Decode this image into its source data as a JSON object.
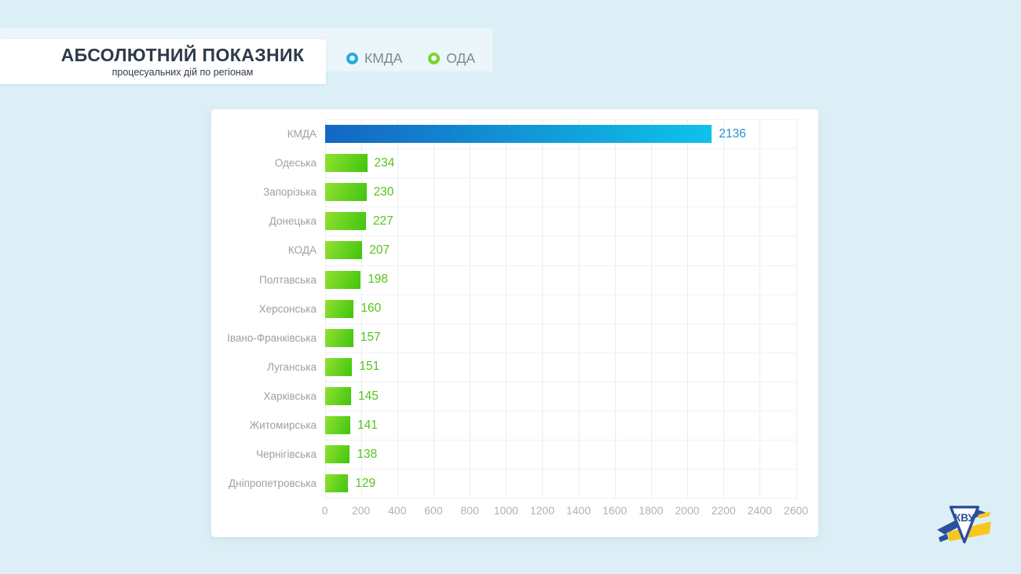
{
  "header": {
    "title": "АБСОЛЮТНИЙ ПОКАЗНИК",
    "subtitle": "процесуальних дій по регіонам"
  },
  "legend": {
    "items": [
      {
        "label": "КМДА",
        "color": "#0d84cf"
      },
      {
        "label": "ОДА",
        "color": "#46bf12"
      }
    ]
  },
  "chart_data": {
    "type": "bar",
    "orientation": "horizontal",
    "title": "АБСОЛЮТНИЙ ПОКАЗНИК",
    "subtitle": "процесуальних дій по регіонам",
    "categories": [
      "КМДА",
      "Одеська",
      "Запорізька",
      "Донецька",
      "КОДА",
      "Полтавська",
      "Херсонська",
      "Івано-Франківська",
      "Луганська",
      "Харківська",
      "Житомирська",
      "Чернігівська",
      "Дніпропетровська"
    ],
    "values": [
      2136,
      234,
      230,
      227,
      207,
      198,
      160,
      157,
      151,
      145,
      141,
      138,
      129
    ],
    "groups": [
      "КМДА",
      "ОДА",
      "ОДА",
      "ОДА",
      "ОДА",
      "ОДА",
      "ОДА",
      "ОДА",
      "ОДА",
      "ОДА",
      "ОДА",
      "ОДА",
      "ОДА"
    ],
    "xlim": [
      0,
      2600
    ],
    "xticks": [
      0,
      200,
      400,
      600,
      800,
      1000,
      1200,
      1400,
      1600,
      1800,
      2000,
      2200,
      2400,
      2600
    ],
    "grid": true,
    "legend_position": "top"
  },
  "colors": {
    "background": "#dcEFF6",
    "title_text": "#2d3a49",
    "label_text": "#9aa1a7",
    "axis_text": "#adb3b8",
    "kmda_bar_start": "#1467c2",
    "kmda_bar_end": "#0fc2ea",
    "kmda_value": "#2a8fd2",
    "oda_bar_start": "#93e032",
    "oda_bar_end": "#3fc50e",
    "oda_value": "#57c31c"
  },
  "logo": {
    "name": "КВУ",
    "blue": "#2b4e9f",
    "yellow": "#f8c61d"
  }
}
